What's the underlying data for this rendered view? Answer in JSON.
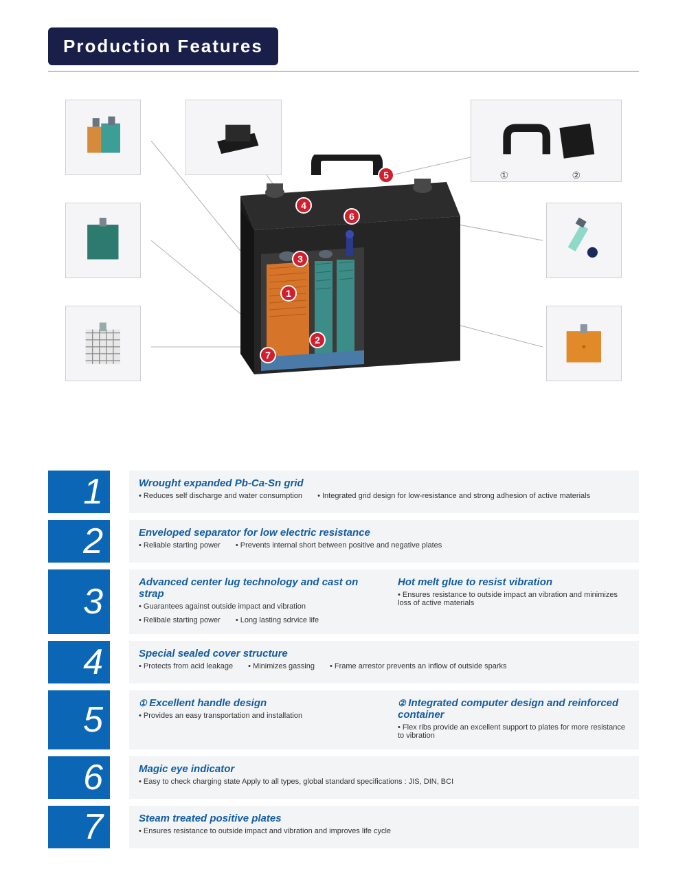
{
  "header": {
    "title": "Production  Features"
  },
  "colors": {
    "header_bg": "#1a1f4a",
    "num_block": "#0b66b5",
    "badge": "#d01f2e",
    "title_text": "#145da0",
    "body_bg": "#f2f4f6"
  },
  "diagram": {
    "badges": [
      "1",
      "2",
      "3",
      "4",
      "5",
      "6",
      "7"
    ],
    "sub_labels": {
      "a": "①",
      "b": "②"
    }
  },
  "features": [
    {
      "num": "1",
      "cols": [
        {
          "title": "Wrought expanded Pb-Ca-Sn grid",
          "bullets": [
            "Reduces self discharge and water consumption",
            "Integrated grid design for low-resistance and strong adhesion of active materials"
          ]
        }
      ]
    },
    {
      "num": "2",
      "cols": [
        {
          "title": "Enveloped separator for low electric resistance",
          "bullets": [
            "Reliable starting power",
            "Prevents internal short between positive and negative plates"
          ]
        }
      ]
    },
    {
      "num": "3",
      "cols": [
        {
          "title": "Advanced center lug technology and cast on strap",
          "bullets": [
            "Guarantees against outside impact and vibration",
            "Relibale starting power",
            "Long lasting sdrvice life"
          ],
          "vertical": true
        },
        {
          "title": "Hot melt glue to resist vibration",
          "bullets": [
            "Ensures resistance to outside impact an vibration and minimizes loss of active materials"
          ],
          "vertical": true
        }
      ]
    },
    {
      "num": "4",
      "cols": [
        {
          "title": "Special sealed cover structure",
          "bullets": [
            "Protects from acid leakage",
            "Minimizes gassing",
            "Frame arrestor prevents an inflow of outside sparks"
          ]
        }
      ]
    },
    {
      "num": "5",
      "cols": [
        {
          "prefix": "①",
          "title": "Excellent handle design",
          "bullets": [
            "Provides an easy transportation and installation"
          ],
          "vertical": true
        },
        {
          "prefix": "②",
          "title": "Integrated computer design and reinforced container",
          "bullets": [
            "Flex ribs provide an excellent support to plates for more resistance to vibration"
          ],
          "vertical": true
        }
      ]
    },
    {
      "num": "6",
      "cols": [
        {
          "title": "Magic eye indicator",
          "bullets": [
            "Easy to check charging state Apply to all types, global standard specifications : JIS, DIN, BCI"
          ]
        }
      ]
    },
    {
      "num": "7",
      "cols": [
        {
          "title": "Steam treated positive plates",
          "bullets": [
            "Ensures resistance to outside impact and vibration and improves life cycle"
          ]
        }
      ]
    }
  ]
}
